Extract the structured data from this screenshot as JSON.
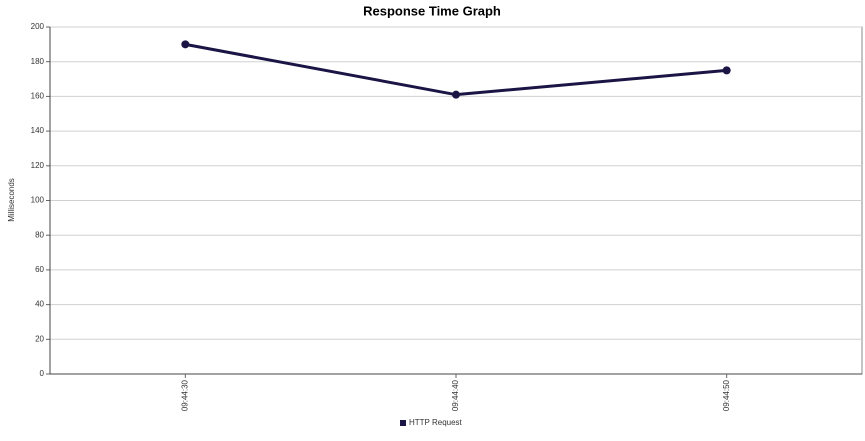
{
  "chart_data": {
    "type": "line",
    "title": "Response Time Graph",
    "y_label": "Milliseconds",
    "categories": [
      "09:44:30",
      "09:44:40",
      "09:44:50"
    ],
    "series": [
      {
        "name": "HTTP Request",
        "color": "#1b1545",
        "values": [
          190,
          161,
          175
        ]
      }
    ],
    "ylim": [
      0,
      200
    ],
    "yticks": [
      0,
      20,
      40,
      60,
      80,
      100,
      120,
      140,
      160,
      180,
      200
    ],
    "grid": true
  }
}
